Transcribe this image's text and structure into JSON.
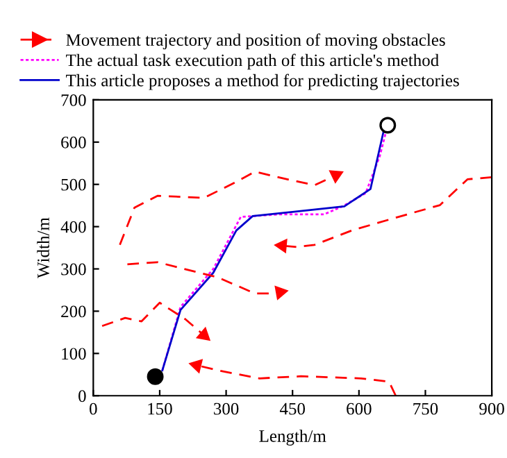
{
  "chart_data": {
    "type": "line",
    "xlabel": "Length/m",
    "ylabel": "Width/m",
    "xlim": [
      0,
      900
    ],
    "xticks": [
      0,
      150,
      300,
      450,
      600,
      750,
      900
    ],
    "ylim": [
      0,
      700
    ],
    "yticks": [
      0,
      100,
      200,
      300,
      400,
      500,
      600,
      700
    ],
    "grid": false,
    "legend": "top",
    "series": [
      {
        "name": "Movement trajectory and position of moving obstacles",
        "color": "#ff0000",
        "line_style": "dashed",
        "x": [
          60,
          93,
          145,
          250,
          323,
          365,
          438,
          500,
          548
        ],
        "values": [
          357,
          445,
          473,
          468,
          506,
          530,
          512,
          498,
          522
        ]
      },
      {
        "name": "The actual task execution path of this article's method",
        "color": "#ff00ff",
        "line_style": "dotted",
        "x": [
          156,
          197,
          271,
          333,
          417,
          521,
          563,
          615,
          647,
          665
        ],
        "values": [
          60,
          210,
          300,
          423,
          429,
          429,
          448,
          479,
          567,
          640
        ]
      },
      {
        "name": "This article proposes a method for predicting trajectories",
        "color": "#0000cc",
        "line_style": "solid",
        "x": [
          156,
          197,
          271,
          323,
          360,
          450,
          567,
          626,
          657,
          665
        ],
        "values": [
          60,
          203,
          291,
          391,
          425,
          435,
          448,
          489,
          632,
          640
        ]
      },
      {
        "color": "#ff0000",
        "line_style": "dashed",
        "x": [
          900,
          845,
          783,
          689,
          584,
          500,
          459,
          427
        ],
        "values": [
          517,
          512,
          451,
          423,
          391,
          357,
          352,
          355
        ]
      },
      {
        "color": "#ff0000",
        "line_style": "dashed",
        "x": [
          77,
          145,
          281,
          365,
          406,
          422
        ],
        "values": [
          311,
          316,
          280,
          242,
          242,
          245
        ]
      },
      {
        "color": "#ff0000",
        "line_style": "dashed",
        "x": [
          20,
          72,
          109,
          150,
          208,
          250
        ],
        "values": [
          165,
          184,
          176,
          220,
          181,
          143
        ]
      },
      {
        "color": "#ff0000",
        "line_style": "dashed",
        "x": [
          683,
          668,
          605,
          469,
          375,
          281,
          234
        ],
        "values": [
          0,
          33,
          41,
          46,
          41,
          60,
          72
        ]
      },
      {
        "type": "scatter",
        "color": "#000000",
        "x": [
          140
        ],
        "values": [
          45
        ]
      },
      {
        "type": "scatter",
        "color": "#ffffff",
        "x": [
          665
        ],
        "values": [
          640
        ]
      }
    ]
  }
}
